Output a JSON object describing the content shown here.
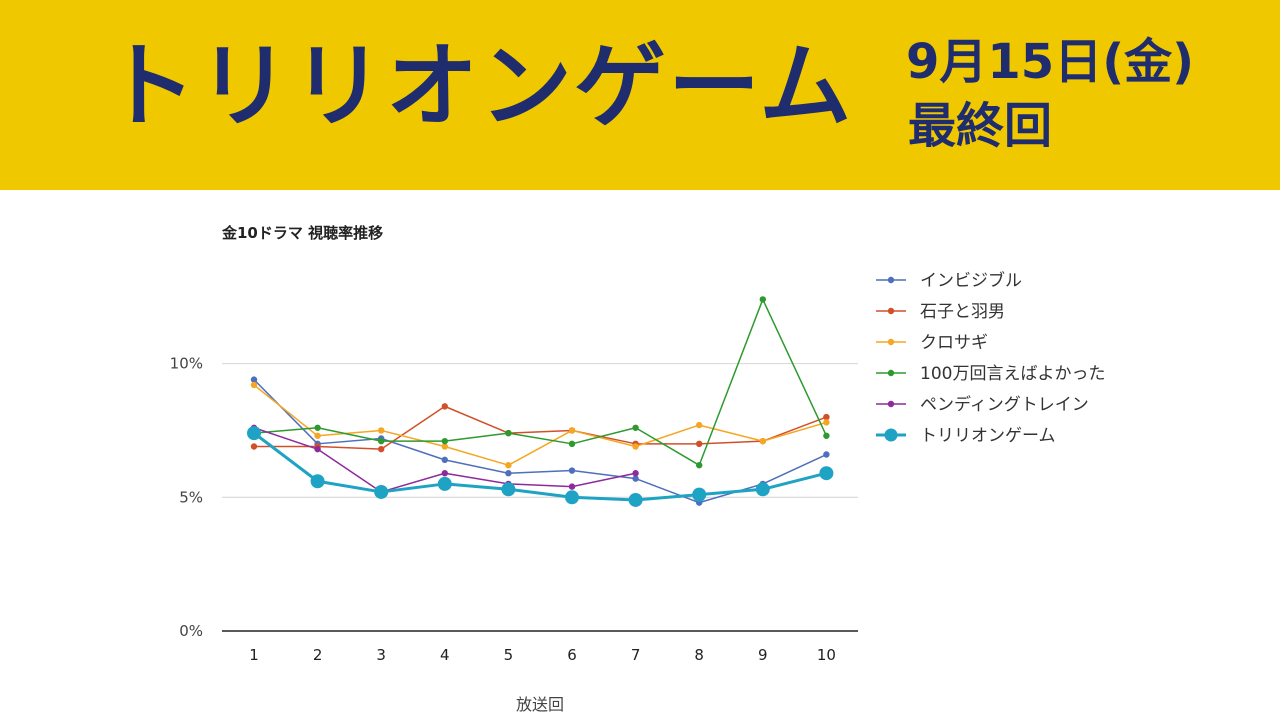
{
  "banner": {
    "title": "トリリオンゲーム",
    "date": "9月15日(金)",
    "subtitle": "最終回",
    "background": "#f0c800",
    "text_color": "#1f2d6e"
  },
  "chart_data": {
    "type": "line",
    "title": "金10ドラマ 視聴率推移",
    "xlabel": "放送回",
    "ylabel": "",
    "x": [
      1,
      2,
      3,
      4,
      5,
      6,
      7,
      8,
      9,
      10
    ],
    "ylim": [
      0,
      13.5
    ],
    "yticks": [
      0,
      5,
      10
    ],
    "ytick_labels": [
      "0%",
      "5%",
      "10%"
    ],
    "grid": true,
    "legend": "right",
    "series": [
      {
        "name": "インビジブル",
        "color": "#4e6fbc",
        "values": [
          9.4,
          7.0,
          7.2,
          6.4,
          5.9,
          6.0,
          5.7,
          4.8,
          5.5,
          6.6
        ]
      },
      {
        "name": "石子と羽男",
        "color": "#d1502a",
        "values": [
          6.9,
          6.9,
          6.8,
          8.4,
          7.4,
          7.5,
          7.0,
          7.0,
          7.1,
          8.0
        ]
      },
      {
        "name": "クロサギ",
        "color": "#f5a623",
        "values": [
          9.2,
          7.3,
          7.5,
          6.9,
          6.2,
          7.5,
          6.9,
          7.7,
          7.1,
          7.8
        ]
      },
      {
        "name": "100万回言えばよかった",
        "color": "#2e9a2e",
        "values": [
          7.4,
          7.6,
          7.1,
          7.1,
          7.4,
          7.0,
          7.6,
          6.2,
          12.4,
          7.3
        ]
      },
      {
        "name": "ペンディングトレイン",
        "color": "#8e2a9c",
        "values": [
          7.6,
          6.8,
          5.2,
          5.9,
          5.5,
          5.4,
          5.9,
          null,
          null,
          null
        ]
      },
      {
        "name": "トリリオンゲーム",
        "color": "#1fa3c4",
        "values": [
          7.4,
          5.6,
          5.2,
          5.5,
          5.3,
          5.0,
          4.9,
          5.1,
          5.3,
          5.9
        ],
        "emphasis": true
      }
    ]
  }
}
